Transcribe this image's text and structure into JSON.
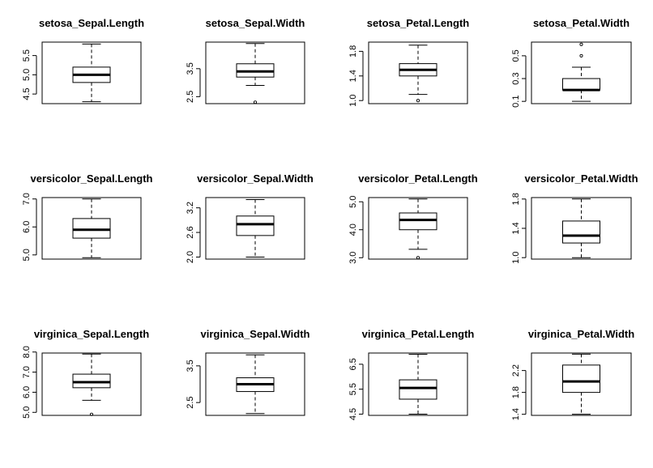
{
  "chart_data": [
    {
      "type": "box",
      "title": "setosa_Sepal.Length",
      "ylim": [
        4.25,
        5.85
      ],
      "ticks": [
        {
          "v": 4.5,
          "label": "4.5"
        },
        {
          "v": 5.0,
          "label": "5.0"
        },
        {
          "v": 5.5,
          "label": "5.5"
        }
      ],
      "box": {
        "min": 4.3,
        "q1": 4.8,
        "median": 5.0,
        "q3": 5.2,
        "max": 5.8
      },
      "outliers": []
    },
    {
      "type": "box",
      "title": "setosa_Sepal.Width",
      "ylim": [
        2.25,
        4.45
      ],
      "ticks": [
        {
          "v": 2.5,
          "label": "2.5"
        },
        {
          "v": 3.5,
          "label": "3.5"
        }
      ],
      "box": {
        "min": 2.9,
        "q1": 3.2,
        "median": 3.4,
        "q3": 3.675,
        "max": 4.4
      },
      "outliers": [
        2.3
      ]
    },
    {
      "type": "box",
      "title": "setosa_Petal.Length",
      "ylim": [
        0.95,
        1.95
      ],
      "ticks": [
        {
          "v": 1.0,
          "label": "1.0"
        },
        {
          "v": 1.4,
          "label": "1.4"
        },
        {
          "v": 1.8,
          "label": "1.8"
        }
      ],
      "box": {
        "min": 1.1,
        "q1": 1.4,
        "median": 1.5,
        "q3": 1.6,
        "max": 1.9
      },
      "outliers": [
        1.0
      ]
    },
    {
      "type": "box",
      "title": "setosa_Petal.Width",
      "ylim": [
        0.08,
        0.62
      ],
      "ticks": [
        {
          "v": 0.1,
          "label": "0.1"
        },
        {
          "v": 0.3,
          "label": "0.3"
        },
        {
          "v": 0.5,
          "label": "0.5"
        }
      ],
      "box": {
        "min": 0.1,
        "q1": 0.2,
        "median": 0.2,
        "q3": 0.3,
        "max": 0.4
      },
      "outliers": [
        0.5,
        0.6
      ]
    },
    {
      "type": "box",
      "title": "versicolor_Sepal.Length",
      "ylim": [
        4.85,
        7.05
      ],
      "ticks": [
        {
          "v": 5.0,
          "label": "5.0"
        },
        {
          "v": 6.0,
          "label": "6.0"
        },
        {
          "v": 7.0,
          "label": "7.0"
        }
      ],
      "box": {
        "min": 4.9,
        "q1": 5.6,
        "median": 5.9,
        "q3": 6.3,
        "max": 7.0
      },
      "outliers": []
    },
    {
      "type": "box",
      "title": "versicolor_Sepal.Width",
      "ylim": [
        1.95,
        3.45
      ],
      "ticks": [
        {
          "v": 2.0,
          "label": "2.0"
        },
        {
          "v": 2.6,
          "label": "2.6"
        },
        {
          "v": 3.2,
          "label": "3.2"
        }
      ],
      "box": {
        "min": 2.0,
        "q1": 2.525,
        "median": 2.8,
        "q3": 3.0,
        "max": 3.4
      },
      "outliers": []
    },
    {
      "type": "box",
      "title": "versicolor_Petal.Length",
      "ylim": [
        2.95,
        5.15
      ],
      "ticks": [
        {
          "v": 3.0,
          "label": "3.0"
        },
        {
          "v": 4.0,
          "label": "4.0"
        },
        {
          "v": 5.0,
          "label": "5.0"
        }
      ],
      "box": {
        "min": 3.3,
        "q1": 4.0,
        "median": 4.35,
        "q3": 4.6,
        "max": 5.1
      },
      "outliers": [
        3.0
      ]
    },
    {
      "type": "box",
      "title": "versicolor_Petal.Width",
      "ylim": [
        0.98,
        1.82
      ],
      "ticks": [
        {
          "v": 1.0,
          "label": "1.0"
        },
        {
          "v": 1.4,
          "label": "1.4"
        },
        {
          "v": 1.8,
          "label": "1.8"
        }
      ],
      "box": {
        "min": 1.0,
        "q1": 1.2,
        "median": 1.3,
        "q3": 1.5,
        "max": 1.8
      },
      "outliers": []
    },
    {
      "type": "box",
      "title": "virginica_Sepal.Length",
      "ylim": [
        4.85,
        7.95
      ],
      "ticks": [
        {
          "v": 5.0,
          "label": "5.0"
        },
        {
          "v": 6.0,
          "label": "6.0"
        },
        {
          "v": 7.0,
          "label": "7.0"
        },
        {
          "v": 8.0,
          "label": "8.0"
        }
      ],
      "box": {
        "min": 5.6,
        "q1": 6.225,
        "median": 6.5,
        "q3": 6.9,
        "max": 7.9
      },
      "outliers": [
        4.9
      ]
    },
    {
      "type": "box",
      "title": "virginica_Sepal.Width",
      "ylim": [
        2.15,
        3.85
      ],
      "ticks": [
        {
          "v": 2.5,
          "label": "2.5"
        },
        {
          "v": 3.5,
          "label": "3.5"
        }
      ],
      "box": {
        "min": 2.2,
        "q1": 2.8,
        "median": 3.0,
        "q3": 3.175,
        "max": 3.8
      },
      "outliers": []
    },
    {
      "type": "box",
      "title": "virginica_Petal.Length",
      "ylim": [
        4.45,
        6.95
      ],
      "ticks": [
        {
          "v": 4.5,
          "label": "4.5"
        },
        {
          "v": 5.5,
          "label": "5.5"
        },
        {
          "v": 6.5,
          "label": "6.5"
        }
      ],
      "box": {
        "min": 4.5,
        "q1": 5.1,
        "median": 5.55,
        "q3": 5.875,
        "max": 6.9
      },
      "outliers": []
    },
    {
      "type": "box",
      "title": "virginica_Petal.Width",
      "ylim": [
        1.38,
        2.52
      ],
      "ticks": [
        {
          "v": 1.4,
          "label": "1.4"
        },
        {
          "v": 1.8,
          "label": "1.8"
        },
        {
          "v": 2.2,
          "label": "2.2"
        }
      ],
      "box": {
        "min": 1.4,
        "q1": 1.8,
        "median": 2.0,
        "q3": 2.3,
        "max": 2.5
      },
      "outliers": []
    }
  ]
}
